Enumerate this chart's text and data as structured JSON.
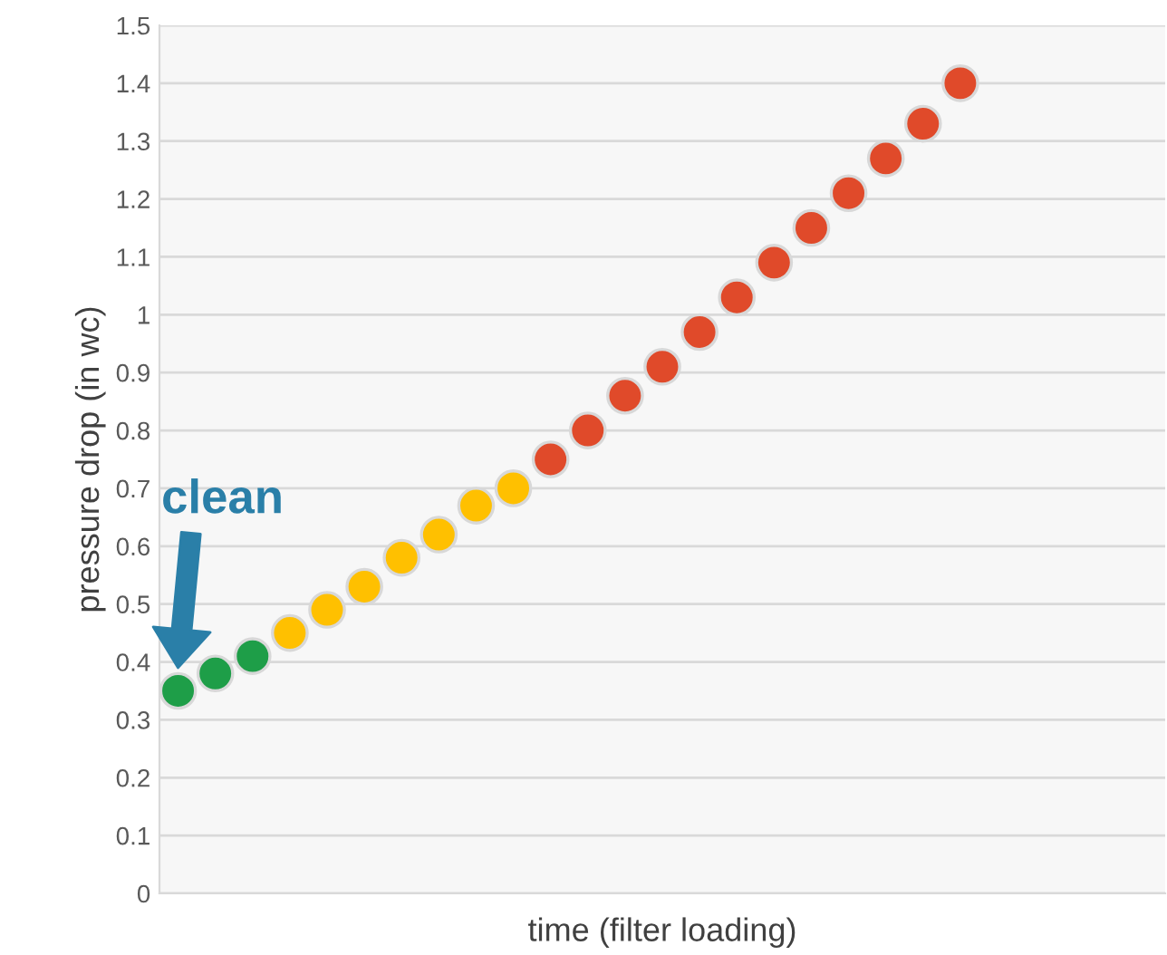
{
  "chart_data": {
    "type": "scatter",
    "xlabel": "time (filter loading)",
    "ylabel": "pressure drop (in wc)",
    "categories": [
      null,
      null,
      null,
      null,
      null,
      null,
      null,
      null,
      null,
      null,
      null,
      null,
      null,
      null,
      null,
      null,
      null,
      null,
      null,
      null,
      null,
      null,
      null,
      null,
      null,
      null,
      null
    ],
    "ylim": [
      0,
      1.5
    ],
    "yticks": [
      0,
      0.1,
      0.2,
      0.3,
      0.4,
      0.5,
      0.6,
      0.7,
      0.8,
      0.9,
      1,
      1.1,
      1.2,
      1.3,
      1.4,
      1.5
    ],
    "tick_labels": "y",
    "grid": "y",
    "marker": "circle",
    "values": [
      0.35,
      0.38,
      0.41,
      0.45,
      0.49,
      0.53,
      0.58,
      0.62,
      0.67,
      0.7,
      0.75,
      0.8,
      0.86,
      0.91,
      0.97,
      1.03,
      1.09,
      1.15,
      1.21,
      1.27,
      1.33,
      1.4,
      null,
      null,
      null,
      null,
      null
    ],
    "colors": [
      "#1e9e48",
      "#1e9e48",
      "#1e9e48",
      "#ffc000",
      "#ffc000",
      "#ffc000",
      "#ffc000",
      "#ffc000",
      "#ffc000",
      "#ffc000",
      "#e04a2a",
      "#e04a2a",
      "#e04a2a",
      "#e04a2a",
      "#e04a2a",
      "#e04a2a",
      "#e04a2a",
      "#e04a2a",
      "#e04a2a",
      "#e04a2a",
      "#e04a2a",
      "#e04a2a",
      null,
      null,
      null,
      null,
      null
    ],
    "annotations": [
      "clean"
    ]
  }
}
